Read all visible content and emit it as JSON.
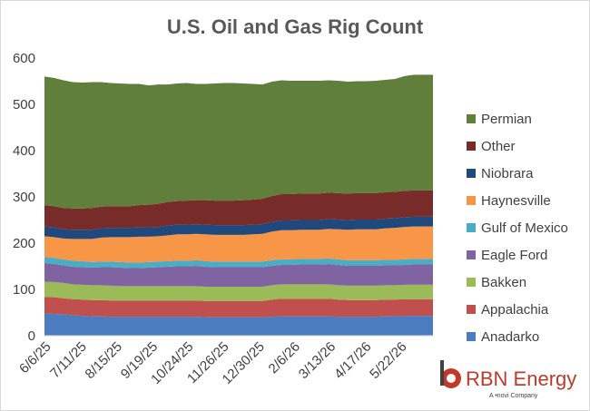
{
  "chart_data": {
    "type": "area",
    "stacked": true,
    "title": "U.S. Oil and Gas Rig Count",
    "xlabel": "",
    "ylabel": "",
    "ylim": [
      0,
      600
    ],
    "yticks": [
      0,
      100,
      200,
      300,
      400,
      500,
      600
    ],
    "grid": false,
    "legend_position": "right",
    "xtick_labels": [
      "6/6/25",
      "7/11/25",
      "8/15/25",
      "9/19/25",
      "10/24/25",
      "11/26/25",
      "12/30/25",
      "2/6/26",
      "3/13/26",
      "4/17/26",
      "5/22/26"
    ],
    "series": [
      {
        "name": "Anadarko",
        "color": "#4a7cbf",
        "values": [
          48,
          47,
          46,
          44,
          43,
          42,
          42,
          41,
          41,
          41,
          41,
          41,
          41,
          41,
          41,
          41,
          41,
          40,
          40,
          40,
          40,
          40,
          40,
          40,
          41,
          42,
          42,
          42,
          42,
          42,
          42,
          41,
          41,
          41,
          41,
          41,
          42,
          42,
          43,
          43,
          43,
          43
        ]
      },
      {
        "name": "Appalachia",
        "color": "#c0504d",
        "values": [
          36,
          36,
          35,
          35,
          35,
          35,
          35,
          35,
          35,
          35,
          35,
          35,
          35,
          35,
          35,
          35,
          35,
          35,
          35,
          35,
          35,
          35,
          35,
          35,
          37,
          38,
          38,
          38,
          38,
          38,
          38,
          37,
          36,
          36,
          36,
          36,
          36,
          36,
          36,
          36,
          36,
          36
        ]
      },
      {
        "name": "Bakken",
        "color": "#9bbb59",
        "values": [
          33,
          33,
          33,
          32,
          32,
          32,
          32,
          32,
          31,
          31,
          31,
          31,
          31,
          31,
          31,
          31,
          31,
          31,
          31,
          31,
          31,
          31,
          31,
          31,
          31,
          31,
          31,
          31,
          31,
          31,
          31,
          31,
          31,
          31,
          31,
          31,
          31,
          31,
          31,
          31,
          31,
          31
        ]
      },
      {
        "name": "Eagle Ford",
        "color": "#8064a2",
        "values": [
          40,
          39,
          38,
          38,
          38,
          38,
          39,
          40,
          40,
          39,
          39,
          40,
          41,
          42,
          43,
          43,
          44,
          43,
          42,
          42,
          42,
          42,
          42,
          42,
          42,
          42,
          42,
          43,
          43,
          43,
          44,
          44,
          43,
          43,
          43,
          43,
          43,
          43,
          43,
          44,
          44,
          44
        ]
      },
      {
        "name": "Gulf of Mexico",
        "color": "#4bacc6",
        "values": [
          13,
          13,
          13,
          13,
          13,
          12,
          12,
          12,
          12,
          12,
          12,
          12,
          12,
          12,
          12,
          12,
          12,
          12,
          12,
          12,
          12,
          12,
          12,
          12,
          12,
          12,
          12,
          12,
          12,
          12,
          12,
          12,
          12,
          12,
          12,
          12,
          12,
          12,
          12,
          12,
          12,
          12
        ]
      },
      {
        "name": "Haynesville",
        "color": "#f79646",
        "values": [
          45,
          45,
          45,
          47,
          48,
          50,
          52,
          53,
          54,
          55,
          56,
          55,
          55,
          56,
          57,
          57,
          57,
          58,
          58,
          58,
          58,
          58,
          59,
          60,
          62,
          63,
          63,
          63,
          63,
          63,
          64,
          65,
          66,
          67,
          67,
          67,
          68,
          69,
          70,
          70,
          70,
          70
        ]
      },
      {
        "name": "Niobrara",
        "color": "#1f497d",
        "values": [
          21,
          21,
          20,
          20,
          20,
          20,
          20,
          20,
          20,
          20,
          20,
          20,
          20,
          21,
          21,
          21,
          21,
          21,
          21,
          21,
          21,
          21,
          21,
          21,
          21,
          21,
          21,
          21,
          21,
          21,
          21,
          21,
          21,
          21,
          21,
          21,
          21,
          21,
          21,
          21,
          21,
          21
        ]
      },
      {
        "name": "Other",
        "color": "#772c2a",
        "values": [
          46,
          46,
          46,
          46,
          46,
          47,
          47,
          47,
          47,
          47,
          48,
          49,
          50,
          51,
          51,
          52,
          52,
          53,
          53,
          53,
          53,
          54,
          54,
          55,
          56,
          57,
          57,
          57,
          57,
          57,
          57,
          57,
          57,
          57,
          57,
          57,
          57,
          57,
          57,
          57,
          57,
          57
        ]
      },
      {
        "name": "Permian",
        "color": "#5f7f3a",
        "values": [
          278,
          277,
          276,
          273,
          272,
          272,
          269,
          266,
          265,
          264,
          262,
          258,
          258,
          254,
          254,
          254,
          251,
          251,
          253,
          254,
          254,
          252,
          250,
          247,
          247,
          246,
          245,
          244,
          244,
          244,
          243,
          243,
          242,
          242,
          242,
          243,
          243,
          244,
          248,
          250,
          250,
          250
        ]
      }
    ]
  },
  "logo": {
    "brand": "RBN Energy",
    "tagline": "A •novi Company"
  }
}
